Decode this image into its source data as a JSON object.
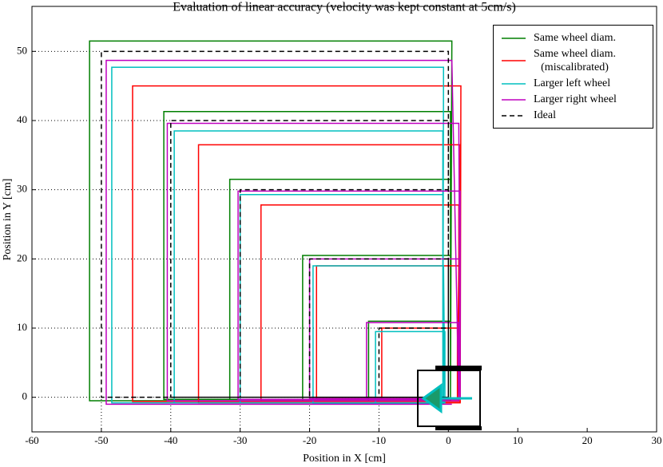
{
  "chart_data": {
    "type": "line",
    "title": "Evaluation of linear accuracy (velocity was kept constant at 5cm/s)",
    "x_label": "Position in X [cm]",
    "y_label": "Position in Y [cm]",
    "xlim": [
      -60,
      30
    ],
    "ylim": [
      -5,
      56.5
    ],
    "xticks": [
      -60,
      -50,
      -40,
      -30,
      -20,
      -10,
      0,
      10,
      20,
      30
    ],
    "yticks": [
      0,
      10,
      20,
      30,
      40,
      50
    ],
    "legend": "upper right",
    "series": [
      {
        "name": "Same wheel diam.",
        "color": "#007f00",
        "linestyle": "solid",
        "x": [
          0.3,
          0.3,
          -11.5,
          -11.5,
          0.3,
          0.3,
          -21,
          -21,
          0.3,
          0.3,
          -31.5,
          -31.5,
          0.3,
          0.3,
          -41,
          -41,
          0.3,
          0.5,
          -51.7,
          -51.7,
          0.3
        ],
        "y": [
          -0.5,
          11,
          11,
          -0.5,
          -0.5,
          20.5,
          20.5,
          -0.5,
          -0.5,
          31.5,
          31.5,
          -0.3,
          -0.3,
          41.3,
          41.3,
          -0.3,
          -0.3,
          51.5,
          51.5,
          -0.5,
          -0.5
        ]
      },
      {
        "name": "Same wheel diam.\n(miscalibrated)",
        "color": "#ff0000",
        "linestyle": "solid",
        "x": [
          1.3,
          1.3,
          -9.6,
          -9.6,
          1.3,
          1.5,
          -19,
          -19,
          1.5,
          1.5,
          -27,
          -27,
          1.5,
          1.7,
          -36,
          -36,
          1.7,
          1.8,
          -45.5,
          -45.5,
          1.8
        ],
        "y": [
          -0.2,
          10,
          10,
          -0.3,
          -0.3,
          19,
          19,
          -0.2,
          -0.2,
          27.8,
          27.8,
          -0.5,
          -0.5,
          36.5,
          36.5,
          -0.8,
          -0.8,
          45,
          45,
          -0.6,
          -0.6
        ]
      },
      {
        "name": "Larger left wheel",
        "color": "#00bfbf",
        "linestyle": "solid",
        "x": [
          -0.5,
          -0.5,
          -10.5,
          -10.5,
          -0.5,
          -0.7,
          -19.5,
          -19.5,
          -0.7,
          -0.8,
          -30,
          -30,
          -0.8,
          -0.8,
          -39.5,
          -39.5,
          -0.8,
          -0.7,
          -48.5,
          -48.5,
          -0.7
        ],
        "y": [
          0,
          9.5,
          9.5,
          -0.8,
          -0.8,
          19,
          19,
          -0.9,
          -0.9,
          29.3,
          29.3,
          -0.8,
          -0.8,
          38.5,
          38.5,
          -0.8,
          -0.8,
          47.7,
          47.7,
          -0.8,
          -0.8
        ]
      },
      {
        "name": "Larger right wheel",
        "color": "#bf00bf",
        "linestyle": "solid",
        "x": [
          1.5,
          1.5,
          -11.8,
          -11.8,
          1.5,
          1.7,
          -20,
          -20,
          1.7,
          1.7,
          -30.3,
          -30.3,
          1.7,
          1.5,
          -40.5,
          -40.5,
          1.5,
          0.5,
          -49.3,
          -49.3,
          0.5
        ],
        "y": [
          0,
          10.8,
          10.8,
          -0.3,
          -0.3,
          20,
          20,
          -0.2,
          -0.2,
          29.8,
          29.8,
          -0.3,
          -0.3,
          39.6,
          39.6,
          -0.5,
          -0.5,
          48.7,
          48.7,
          -1,
          -1
        ]
      },
      {
        "name": "Ideal",
        "color": "#000000",
        "linestyle": "dashed",
        "x": [
          0,
          0,
          -10,
          -10,
          0,
          0,
          -20,
          -20,
          0,
          0,
          -30,
          -30,
          0,
          0,
          -40,
          -40,
          0,
          0,
          -50,
          -50,
          0
        ],
        "y": [
          0,
          10,
          10,
          0,
          0,
          20,
          20,
          0,
          0,
          30,
          30,
          0,
          0,
          40,
          40,
          0,
          0,
          50,
          50,
          0,
          0
        ]
      }
    ]
  }
}
